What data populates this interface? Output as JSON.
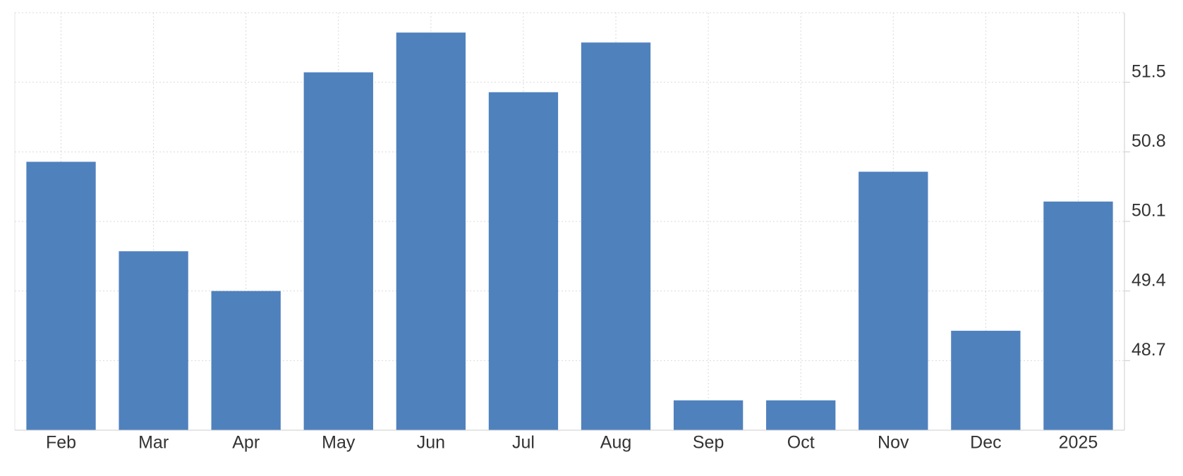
{
  "chart_data": {
    "type": "bar",
    "categories": [
      "Feb",
      "Mar",
      "Apr",
      "May",
      "Jun",
      "Jul",
      "Aug",
      "Sep",
      "Oct",
      "Nov",
      "Dec",
      "2025"
    ],
    "values": [
      50.7,
      49.8,
      49.4,
      51.6,
      52.0,
      51.4,
      51.9,
      48.3,
      48.3,
      50.6,
      49.0,
      50.3
    ],
    "color": "#4f81bd",
    "ylim": [
      48.0,
      52.2
    ],
    "yticks": [
      48.7,
      49.4,
      50.1,
      50.8,
      51.5
    ],
    "grid": true
  }
}
